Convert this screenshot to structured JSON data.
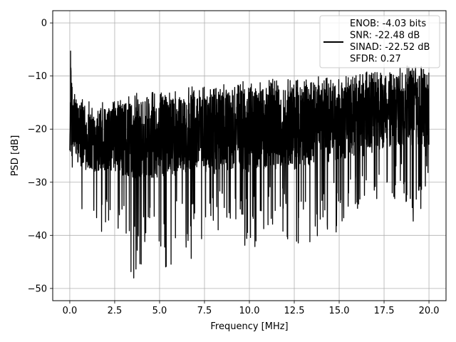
{
  "chart_data": {
    "type": "line",
    "title": "",
    "xlabel": "Frequency [MHz]",
    "ylabel": "PSD [dB]",
    "xlim": [
      -0.95,
      20.95
    ],
    "ylim": [
      -52.3,
      2.3
    ],
    "x_ticks": [
      0.0,
      2.5,
      5.0,
      7.5,
      10.0,
      12.5,
      15.0,
      17.5,
      20.0
    ],
    "x_tick_labels": [
      "0.0",
      "2.5",
      "5.0",
      "7.5",
      "10.0",
      "12.5",
      "15.0",
      "17.5",
      "20.0"
    ],
    "y_ticks": [
      0,
      -10,
      -20,
      -30,
      -40,
      -50
    ],
    "y_tick_labels": [
      "0",
      "−10",
      "−20",
      "−30",
      "−40",
      "−50"
    ],
    "grid": true,
    "legend_position": "top-right",
    "legend_lines": [
      "ENOB: -4.03 bits",
      "SNR: -22.48 dB",
      "SINAD: -22.52 dB",
      "SFDR: 0.27"
    ],
    "series": [
      {
        "color": "#000000",
        "approximate": true,
        "x": [
          0.0,
          0.05,
          0.1,
          0.2,
          0.5,
          1.0,
          1.5,
          2.0,
          2.5,
          3.0,
          3.5,
          4.0,
          4.5,
          5.0,
          5.5,
          6.0,
          6.5,
          7.0,
          7.5,
          8.0,
          8.5,
          9.0,
          9.5,
          10.0,
          10.5,
          11.0,
          11.5,
          12.0,
          12.5,
          13.0,
          13.5,
          14.0,
          14.5,
          15.0,
          15.5,
          16.0,
          16.5,
          17.0,
          17.5,
          18.0,
          18.5,
          19.0,
          19.5,
          20.0
        ],
        "upper": [
          -24,
          -5.3,
          -9,
          -12,
          -14,
          -14.5,
          -14.5,
          -14.5,
          -14.5,
          -13.5,
          -13,
          -13,
          -13,
          -13,
          -12.5,
          -12.5,
          -12,
          -12,
          -12,
          -11.5,
          -11.5,
          -11.5,
          -11,
          -11,
          -11,
          -10.5,
          -10.5,
          -10.5,
          -10.5,
          -10.5,
          -10,
          -10,
          -10,
          -10,
          -9.5,
          -9.5,
          -9,
          -9,
          -8.5,
          -8.5,
          -8,
          -8,
          -8,
          -8
        ],
        "lower": [
          -26,
          -30,
          -32,
          -34,
          -37,
          -39,
          -41,
          -39,
          -42,
          -40,
          -49.3,
          -46,
          -41,
          -44,
          -48.6,
          -45,
          -47,
          -43,
          -44,
          -40,
          -42,
          -46,
          -41,
          -46,
          -42,
          -39,
          -42,
          -39,
          -46,
          -41,
          -42.5,
          -40,
          -41,
          -39,
          -38,
          -36,
          -34,
          -36,
          -39,
          -37,
          -33,
          -38,
          -36,
          -31
        ],
        "mean": [
          -22,
          -14,
          -18,
          -19,
          -21,
          -22,
          -22,
          -22,
          -22,
          -22,
          -22,
          -22,
          -22,
          -22,
          -21.5,
          -21.5,
          -21,
          -21,
          -21,
          -21,
          -20.5,
          -20.5,
          -20.5,
          -20.5,
          -20,
          -20,
          -20,
          -20,
          -20,
          -19.5,
          -19.5,
          -19,
          -19,
          -19,
          -18.5,
          -18,
          -18,
          -17.5,
          -17,
          -17,
          -16.5,
          -16.5,
          -16.5,
          -17
        ]
      }
    ]
  }
}
